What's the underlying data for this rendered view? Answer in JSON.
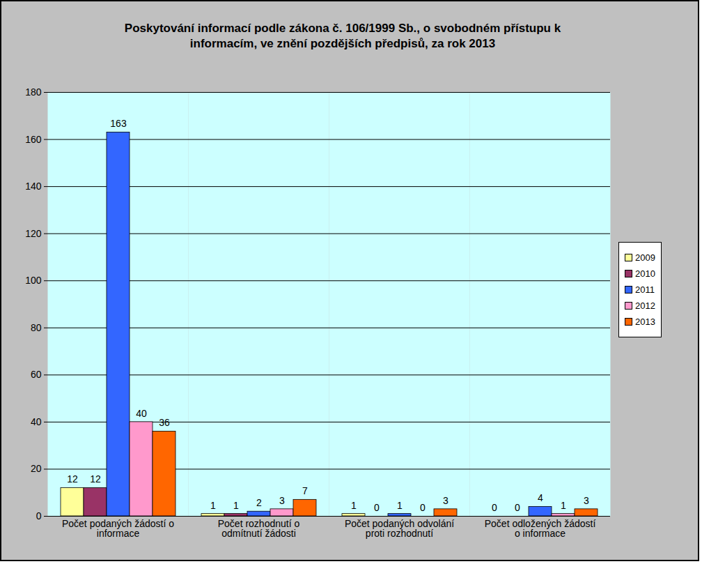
{
  "chart_data": {
    "type": "bar",
    "title": "Poskytování informací podle zákona č. 106/1999 Sb., o svobodném přístupu k informacím, ve znění pozdějších předpisů, za rok 2013",
    "categories": [
      "Počet podaných žádostí o informace",
      "Počet rozhodnutí o odmítnutí žádosti",
      "Počet podaných odvolání proti rozhodnutí",
      "Počet odložených žádostí o informace"
    ],
    "series": [
      {
        "name": "2009",
        "color": "#ffff99",
        "values": [
          12,
          1,
          1,
          0
        ]
      },
      {
        "name": "2010",
        "color": "#993366",
        "values": [
          12,
          1,
          0,
          0
        ]
      },
      {
        "name": "2011",
        "color": "#3366ff",
        "values": [
          163,
          2,
          1,
          4
        ]
      },
      {
        "name": "2012",
        "color": "#ff99cc",
        "values": [
          40,
          3,
          0,
          1
        ]
      },
      {
        "name": "2013",
        "color": "#ff6600",
        "values": [
          36,
          7,
          3,
          3
        ]
      }
    ],
    "ylim": [
      0,
      180
    ],
    "yticks": [
      0,
      20,
      40,
      60,
      80,
      100,
      120,
      140,
      160,
      180
    ],
    "grid": true,
    "legend": "right",
    "data_labels": true
  }
}
